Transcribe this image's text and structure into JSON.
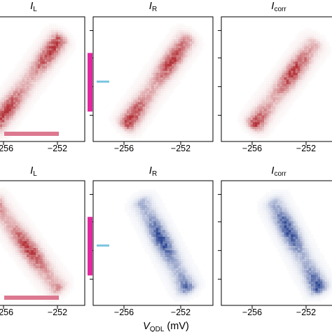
{
  "figure": {
    "panel_titles": [
      {
        "main": "I",
        "sub": "L"
      },
      {
        "main": "I",
        "sub": "R"
      },
      {
        "main": "I",
        "sub": "corr"
      }
    ],
    "xlabel": {
      "main": "V",
      "sub": "QDL",
      "unit": "(mV)"
    },
    "colors": {
      "red_map": "#b0282f",
      "blue_map": "#243f8f",
      "magenta_bar": "#e0289e",
      "pink_bar": "#dc7890",
      "cyan_marker": "#7cc6e0",
      "axis": "#000000"
    }
  },
  "chart_data": [
    {
      "type": "heatmap",
      "row": 1,
      "column": 1,
      "title": "I_L",
      "colormap": "red",
      "x_ticks": [
        "−256",
        "−252"
      ],
      "xlim": [
        -256.4,
        -251.0
      ],
      "trend": "negative",
      "x_range": [
        -256.3,
        -252.5
      ],
      "y_range": [
        0.88,
        0.18
      ]
    },
    {
      "type": "heatmap",
      "row": 1,
      "column": 2,
      "title": "I_R",
      "colormap": "red",
      "x_ticks": [
        "−256",
        "−252"
      ],
      "xlim": [
        -257.8,
        -250.0
      ],
      "trend": "negative",
      "x_range": [
        -255.6,
        -251.7
      ],
      "y_range": [
        0.86,
        0.18
      ]
    },
    {
      "type": "heatmap",
      "row": 1,
      "column": 3,
      "title": "I_corr",
      "colormap": "red",
      "x_ticks": [
        "−256",
        "−252"
      ],
      "xlim": [
        -257.9,
        -250.7
      ],
      "trend": "negative",
      "x_range": [
        -255.8,
        -252.1
      ],
      "y_range": [
        0.86,
        0.22
      ]
    },
    {
      "type": "heatmap",
      "row": 2,
      "column": 1,
      "title": "I_L",
      "colormap": "red",
      "x_ticks": [
        "−256",
        "−252"
      ],
      "xlim": [
        -256.4,
        -251.0
      ],
      "trend": "positive",
      "x_range": [
        -256.3,
        -252.6
      ],
      "y_range": [
        0.18,
        0.86
      ]
    },
    {
      "type": "heatmap",
      "row": 2,
      "column": 2,
      "title": "I_R",
      "colormap": "blue",
      "x_ticks": [
        "−256",
        "−252"
      ],
      "xlim": [
        -257.8,
        -250.0
      ],
      "trend": "positive",
      "x_range": [
        -254.6,
        -251.7
      ],
      "y_range": [
        0.18,
        0.86
      ]
    },
    {
      "type": "heatmap",
      "row": 2,
      "column": 3,
      "title": "I_corr",
      "colormap": "blue",
      "x_ticks": [
        "−256",
        "−252"
      ],
      "xlim": [
        -257.9,
        -250.7
      ],
      "trend": "positive",
      "x_range": [
        -254.6,
        -251.8
      ],
      "y_range": [
        0.18,
        0.86
      ]
    }
  ]
}
